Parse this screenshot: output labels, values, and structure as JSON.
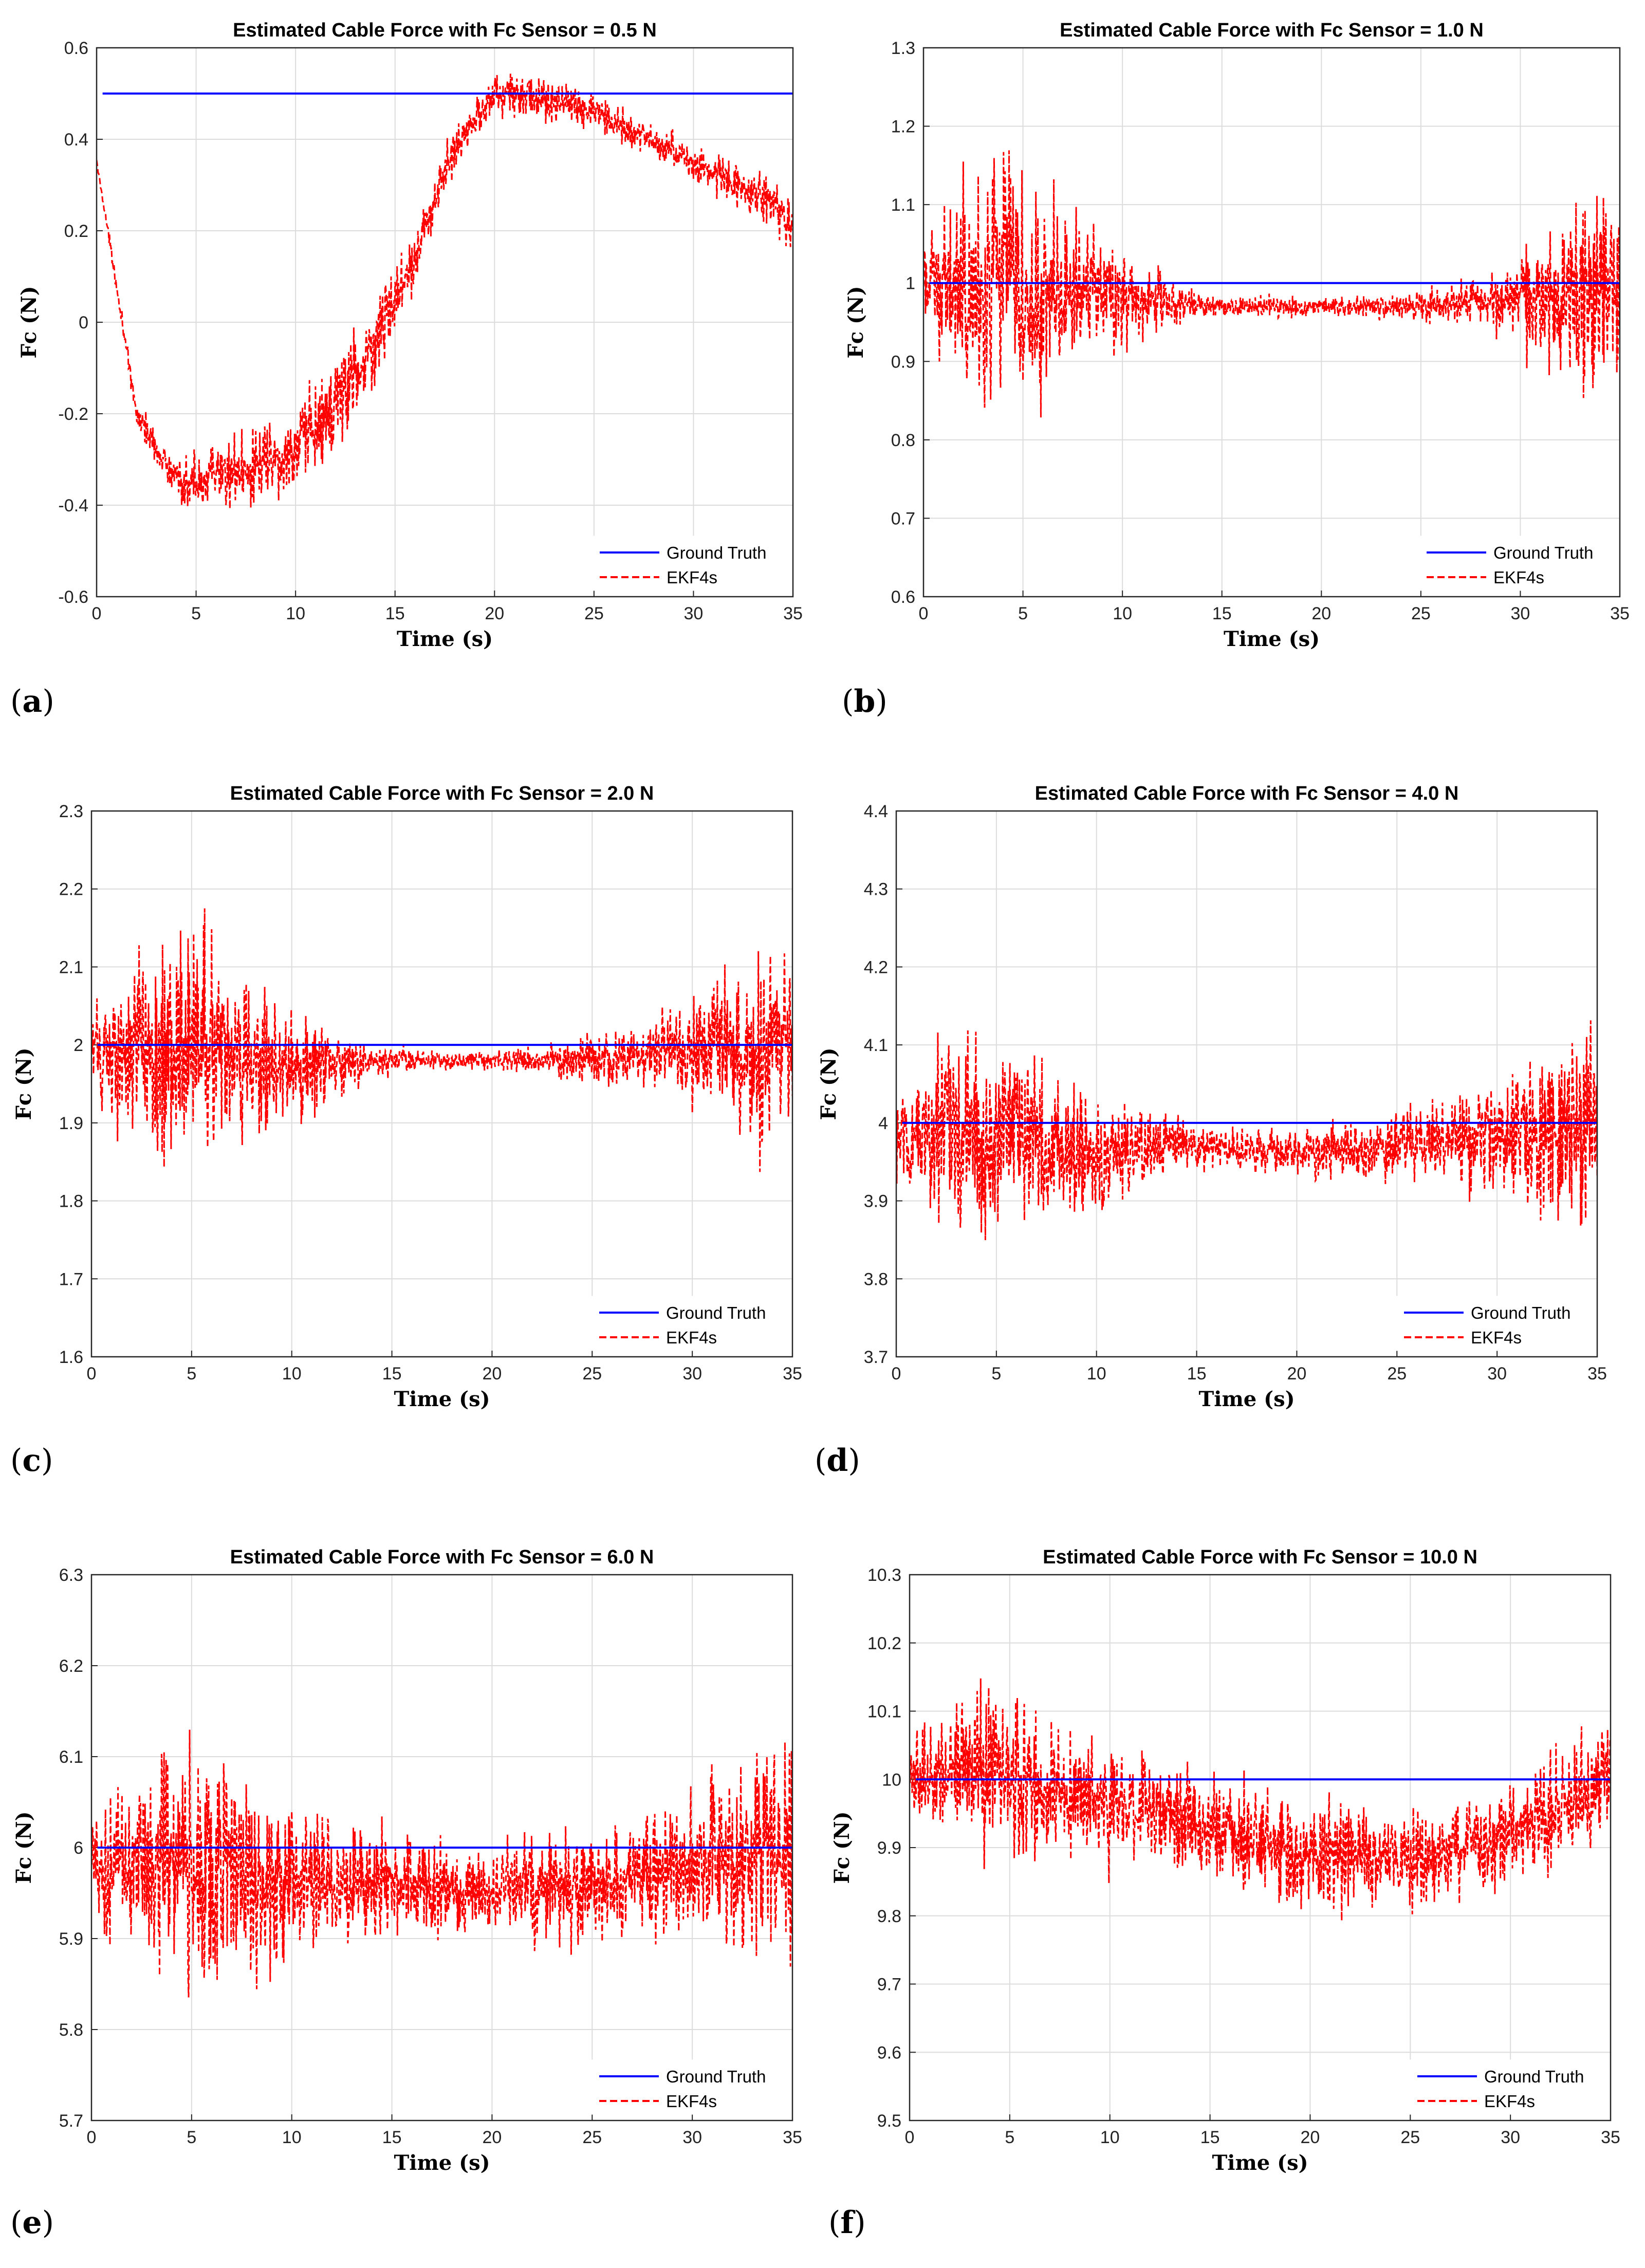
{
  "figure": {
    "colors": {
      "ground_truth": "#0000ff",
      "ekf4s": "#ff0000",
      "grid": "#dcdcdc",
      "axes": "#262626"
    }
  },
  "chart_data": [
    {
      "id": "a",
      "type": "line",
      "letter": "a",
      "title": "Estimated Cable Force with Fc Sensor = 0.5 N",
      "xlabel": "Time (s)",
      "ylabel": "Fc (N)",
      "xlim": [
        0,
        35
      ],
      "ylim": [
        -0.6,
        0.6
      ],
      "xticks": [
        "0",
        "5",
        "10",
        "15",
        "20",
        "25",
        "30",
        "35"
      ],
      "yticks": [
        "-0.6",
        "-0.4",
        "-0.2",
        "0",
        "0.2",
        "0.4",
        "0.6"
      ],
      "ground_truth": 0.5,
      "ekf_trend": {
        "t": [
          0,
          0.5,
          2,
          4,
          6,
          8,
          10,
          12,
          14,
          16,
          18,
          20,
          22,
          25,
          30,
          33,
          35
        ],
        "fc": [
          0.35,
          0.22,
          -0.2,
          -0.35,
          -0.34,
          -0.32,
          -0.28,
          -0.18,
          -0.05,
          0.15,
          0.38,
          0.5,
          0.49,
          0.46,
          0.35,
          0.28,
          0.22
        ]
      },
      "noise_envelope": [
        0.01,
        0.06,
        0.12,
        0.16,
        0.14,
        0.08,
        0.07,
        0.06,
        0.05,
        0.06,
        0.1
      ],
      "legend": [
        {
          "label": "Ground Truth",
          "style": "solid"
        },
        {
          "label": "EKF4s",
          "style": "dashed"
        }
      ]
    },
    {
      "id": "b",
      "type": "line",
      "letter": "b",
      "title": "Estimated Cable Force with Fc Sensor = 1.0 N",
      "xlabel": "Time (s)",
      "ylabel": "Fc (N)",
      "xlim": [
        0,
        35
      ],
      "ylim": [
        0.6,
        1.3
      ],
      "xticks": [
        "0",
        "5",
        "10",
        "15",
        "20",
        "25",
        "30",
        "35"
      ],
      "yticks": [
        "0.6",
        "0.7",
        "0.8",
        "0.9",
        "1",
        "1.1",
        "1.2",
        "1.3"
      ],
      "ground_truth": 1.0,
      "ekf_trend": {
        "t": [
          0,
          3,
          10,
          15,
          20,
          25,
          30,
          35
        ],
        "fc": [
          1.0,
          1.0,
          0.98,
          0.97,
          0.97,
          0.97,
          0.98,
          0.99
        ]
      },
      "noise_envelope": [
        0.08,
        0.24,
        0.16,
        0.08,
        0.02,
        0.02,
        0.02,
        0.03,
        0.05,
        0.13,
        0.2
      ],
      "legend": [
        {
          "label": "Ground Truth",
          "style": "solid"
        },
        {
          "label": "EKF4s",
          "style": "dashed"
        }
      ]
    },
    {
      "id": "c",
      "type": "line",
      "letter": "c",
      "title": "Estimated Cable Force with Fc Sensor = 2.0 N",
      "xlabel": "Time (s)",
      "ylabel": "Fc (N)",
      "xlim": [
        0,
        35
      ],
      "ylim": [
        1.6,
        2.3
      ],
      "xticks": [
        "0",
        "5",
        "10",
        "15",
        "20",
        "25",
        "30",
        "35"
      ],
      "yticks": [
        "1.6",
        "1.7",
        "1.8",
        "1.9",
        "2",
        "2.1",
        "2.2",
        "2.3"
      ],
      "ground_truth": 2.0,
      "ekf_trend": {
        "t": [
          0,
          3,
          10,
          15,
          20,
          25,
          30,
          35
        ],
        "fc": [
          1.99,
          2.0,
          1.97,
          1.98,
          1.98,
          1.98,
          1.99,
          2.0
        ]
      },
      "noise_envelope": [
        0.08,
        0.24,
        0.18,
        0.1,
        0.03,
        0.02,
        0.02,
        0.04,
        0.06,
        0.14,
        0.22
      ],
      "legend": [
        {
          "label": "Ground Truth",
          "style": "solid"
        },
        {
          "label": "EKF4s",
          "style": "dashed"
        }
      ]
    },
    {
      "id": "d",
      "type": "line",
      "letter": "d",
      "title": "Estimated Cable Force with Fc Sensor = 4.0 N",
      "xlabel": "Time (s)",
      "ylabel": "Fc (N)",
      "xlim": [
        0,
        35
      ],
      "ylim": [
        3.7,
        4.4
      ],
      "xticks": [
        "0",
        "5",
        "10",
        "15",
        "20",
        "25",
        "30",
        "35"
      ],
      "yticks": [
        "3.7",
        "3.8",
        "3.9",
        "4",
        "4.1",
        "4.2",
        "4.3",
        "4.4"
      ],
      "ground_truth": 4.0,
      "ekf_trend": {
        "t": [
          0,
          3,
          10,
          15,
          20,
          25,
          30,
          35
        ],
        "fc": [
          3.98,
          4.0,
          3.96,
          3.97,
          3.96,
          3.97,
          3.98,
          4.0
        ]
      },
      "noise_envelope": [
        0.08,
        0.22,
        0.16,
        0.1,
        0.05,
        0.04,
        0.05,
        0.06,
        0.08,
        0.14,
        0.2
      ],
      "legend": [
        {
          "label": "Ground Truth",
          "style": "solid"
        },
        {
          "label": "EKF4s",
          "style": "dashed"
        }
      ]
    },
    {
      "id": "e",
      "type": "line",
      "letter": "e",
      "title": "Estimated Cable Force with Fc Sensor = 6.0 N",
      "xlabel": "Time (s)",
      "ylabel": "Fc (N)",
      "xlim": [
        0,
        35
      ],
      "ylim": [
        5.7,
        6.3
      ],
      "xticks": [
        "0",
        "5",
        "10",
        "15",
        "20",
        "25",
        "30",
        "35"
      ],
      "yticks": [
        "5.7",
        "5.8",
        "5.9",
        "6",
        "6.1",
        "6.2",
        "6.3"
      ],
      "ground_truth": 6.0,
      "ekf_trend": {
        "t": [
          0,
          3,
          10,
          15,
          20,
          25,
          30,
          35
        ],
        "fc": [
          5.98,
          5.99,
          5.96,
          5.96,
          5.95,
          5.96,
          5.98,
          6.0
        ]
      },
      "noise_envelope": [
        0.08,
        0.2,
        0.18,
        0.12,
        0.09,
        0.08,
        0.08,
        0.09,
        0.09,
        0.14,
        0.2
      ],
      "legend": [
        {
          "label": "Ground Truth",
          "style": "solid"
        },
        {
          "label": "EKF4s",
          "style": "dashed"
        }
      ]
    },
    {
      "id": "f",
      "type": "line",
      "letter": "f",
      "title": "Estimated Cable Force with Fc Sensor = 10.0 N",
      "xlabel": "Time (s)",
      "ylabel": "Fc (N)",
      "xlim": [
        0,
        35
      ],
      "ylim": [
        9.5,
        10.3
      ],
      "xticks": [
        "0",
        "5",
        "10",
        "15",
        "20",
        "25",
        "30",
        "35"
      ],
      "yticks": [
        "9.5",
        "9.6",
        "9.7",
        "9.8",
        "9.9",
        "10",
        "10.1",
        "10.2",
        "10.3"
      ],
      "ground_truth": 10.0,
      "ekf_trend": {
        "t": [
          0,
          3,
          10,
          15,
          20,
          25,
          30,
          35
        ],
        "fc": [
          10.0,
          10.02,
          9.96,
          9.93,
          9.89,
          9.88,
          9.92,
          10.0
        ]
      },
      "noise_envelope": [
        0.08,
        0.18,
        0.15,
        0.12,
        0.11,
        0.1,
        0.12,
        0.11,
        0.1,
        0.12,
        0.16
      ],
      "legend": [
        {
          "label": "Ground Truth",
          "style": "solid"
        },
        {
          "label": "EKF4s",
          "style": "dashed"
        }
      ]
    }
  ]
}
